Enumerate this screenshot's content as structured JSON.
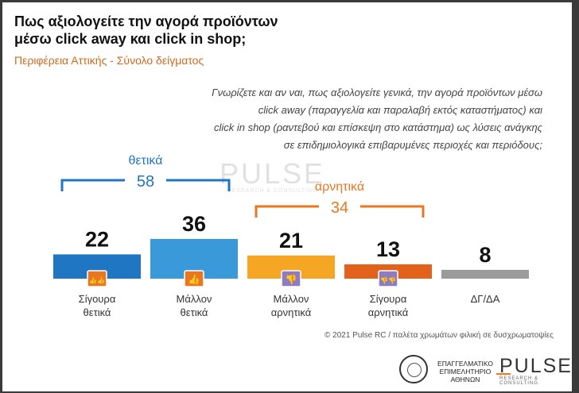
{
  "title_line1": "Πως αξιολογείτε την αγορά προϊόντων",
  "title_line2": "μέσω click away και click in shop;",
  "subtitle": "Περιφέρεια Αττικής - Σύνολο δείγματος",
  "question": [
    "Γνωρίζετε και αν ναι, πως αξιολογείτε γενικά, την αγορά προϊόντων μέσω",
    "click away (παραγγελία και παραλαβή εκτός καταστήματος) και",
    "click in shop (ραντεβού και επίσκεψη στο κατάστημα) ως λύσεις ανάγκης",
    "σε επιδημιολογικά επιβαρυμένες περιοχές και περιόδους;"
  ],
  "watermark": {
    "name": "PULSE",
    "tagline": "RESEARCH & CONSULTING"
  },
  "chart_data": {
    "type": "bar",
    "categories": [
      [
        "Σίγουρα",
        "θετικά"
      ],
      [
        "Μάλλον",
        "θετικά"
      ],
      [
        "Μάλλον",
        "αρνητικά"
      ],
      [
        "Σίγουρα",
        "αρνητικά"
      ],
      [
        "ΔΓ/ΔΑ"
      ]
    ],
    "values": [
      22,
      36,
      21,
      13,
      8
    ],
    "colors": [
      "#1f77c4",
      "#3a9ad9",
      "#f5a623",
      "#e2621b",
      "#9b9b9b"
    ],
    "icons": [
      "double-thumbs-up-icon",
      "thumbs-up-icon",
      "thumbs-down-icon",
      "double-thumbs-down-icon",
      null
    ],
    "icon_colors": [
      "#e87722",
      "#e87722",
      "#8e7cc3",
      "#8e7cc3",
      null
    ],
    "groups": [
      {
        "label": "θετικά",
        "total": "58",
        "from": 0,
        "to": 1,
        "color": "#1f77c4"
      },
      {
        "label": "αρνητικά",
        "total": "34",
        "from": 2,
        "to": 3,
        "color": "#e87722"
      }
    ],
    "ylim": [
      0,
      40
    ],
    "grid": false,
    "legend": "none"
  },
  "footer": "© 2021 Pulse RC  /  παλέτα χρωμάτων φιλική σε δυσχρωματοψίες",
  "logos": {
    "chamber_lines": [
      "ΕΠΑΓΓΕΛΜΑΤΙΚΟ",
      "ΕΠΙΜΕΛΗΤΗΡΙΟ",
      "ΑΘΗΝΩΝ"
    ],
    "pulse_name": "PULSE",
    "pulse_tagline": "RESEARCH & CONSULTING"
  }
}
